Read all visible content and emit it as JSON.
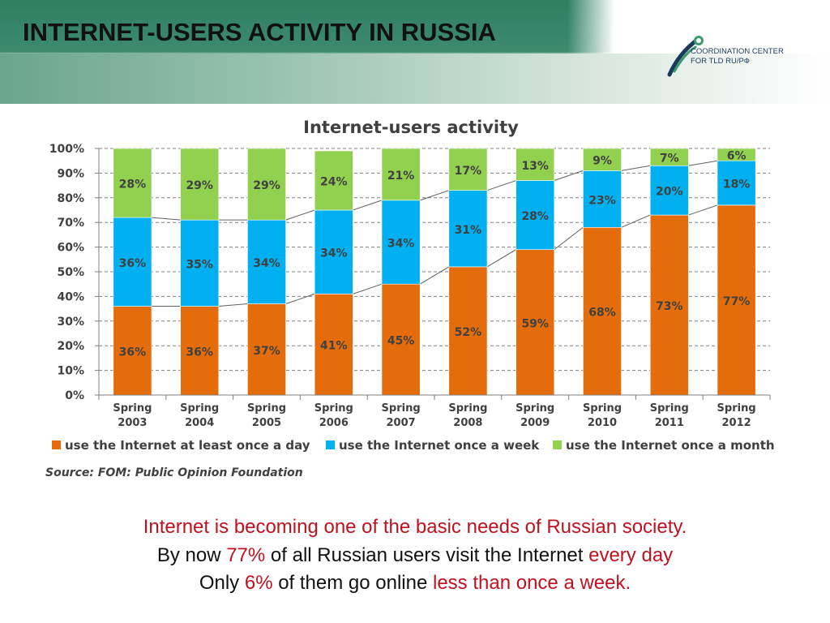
{
  "header": {
    "title": "INTERNET-USERS ACTIVITY IN RUSSIA"
  },
  "logo": {
    "line1": "COORDINATION CENTER",
    "line2": "FOR TLD RU/РФ"
  },
  "chart_data": {
    "type": "bar",
    "stacked": true,
    "title": "Internet-users activity",
    "categories": [
      [
        "Spring",
        "2003"
      ],
      [
        "Spring",
        "2004"
      ],
      [
        "Spring",
        "2005"
      ],
      [
        "Spring",
        "2006"
      ],
      [
        "Spring",
        "2007"
      ],
      [
        "Spring",
        "2008"
      ],
      [
        "Spring",
        "2009"
      ],
      [
        "Spring",
        "2010"
      ],
      [
        "Spring",
        "2011"
      ],
      [
        "Spring",
        "2012"
      ]
    ],
    "series": [
      {
        "name": "use the Internet at least once a day",
        "color": "#e46c0a",
        "values": [
          36,
          36,
          37,
          41,
          45,
          52,
          59,
          68,
          73,
          77
        ]
      },
      {
        "name": "use the Internet once a week",
        "color": "#00b0f0",
        "values": [
          36,
          35,
          34,
          34,
          34,
          31,
          28,
          23,
          20,
          18
        ]
      },
      {
        "name": "use the Internet once a month",
        "color": "#92d050",
        "values": [
          28,
          29,
          29,
          24,
          21,
          17,
          13,
          9,
          7,
          6
        ]
      }
    ],
    "ylim": [
      0,
      100
    ],
    "yticks": [
      "0%",
      "10%",
      "20%",
      "30%",
      "40%",
      "50%",
      "60%",
      "70%",
      "80%",
      "90%",
      "100%"
    ],
    "grid": true,
    "legend": "bottom",
    "source": "Source:  FOM: Public Opinion Foundation"
  },
  "caption": {
    "line1": "Internet is becoming one of the basic needs of Russian society.",
    "line2_a": "By now ",
    "line2_b": "77%",
    "line2_c": " of all Russian users visit the Internet ",
    "line2_d": "every day",
    "line3_a": "Only ",
    "line3_b": "6%",
    "line3_c": " of them go online ",
    "line3_d": "less  than once a week."
  }
}
